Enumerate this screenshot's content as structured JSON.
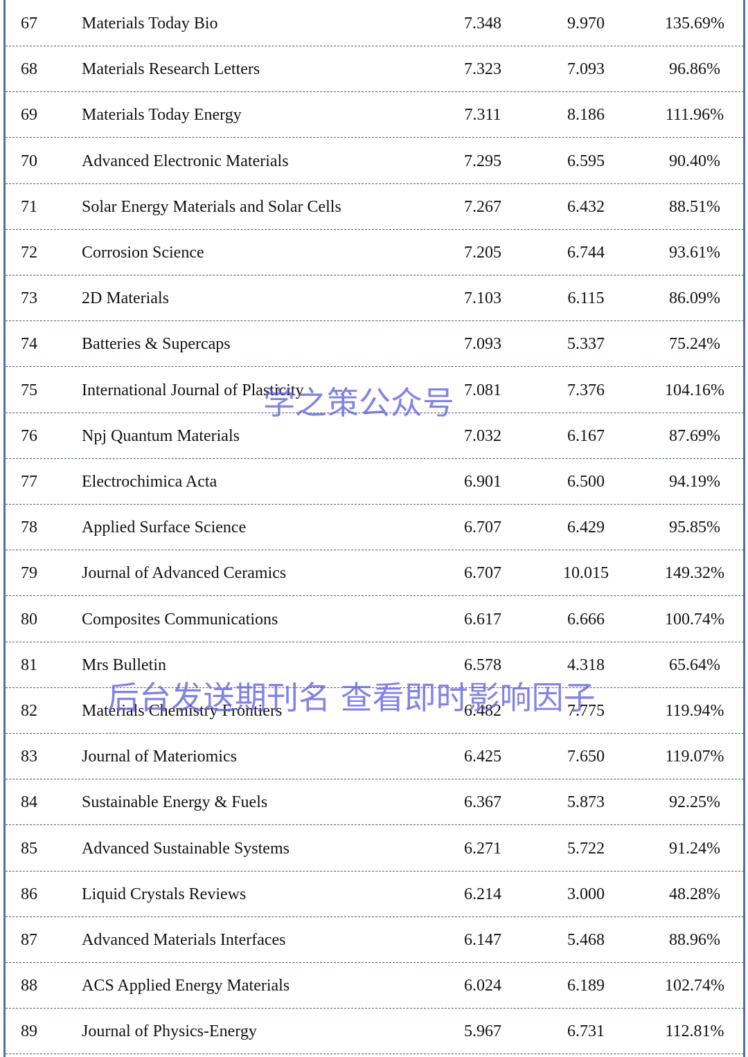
{
  "table": {
    "rows": [
      [
        "67",
        "Materials Today Bio",
        "7.348",
        "9.970",
        "135.69%"
      ],
      [
        "68",
        "Materials Research Letters",
        "7.323",
        "7.093",
        "96.86%"
      ],
      [
        "69",
        "Materials Today Energy",
        "7.311",
        "8.186",
        "111.96%"
      ],
      [
        "70",
        "Advanced Electronic Materials",
        "7.295",
        "6.595",
        "90.40%"
      ],
      [
        "71",
        "Solar Energy Materials and Solar Cells",
        "7.267",
        "6.432",
        "88.51%"
      ],
      [
        "72",
        "Corrosion Science",
        "7.205",
        "6.744",
        "93.61%"
      ],
      [
        "73",
        "2D Materials",
        "7.103",
        "6.115",
        "86.09%"
      ],
      [
        "74",
        "Batteries & Supercaps",
        "7.093",
        "5.337",
        "75.24%"
      ],
      [
        "75",
        "International Journal of Plasticity",
        "7.081",
        "7.376",
        "104.16%"
      ],
      [
        "76",
        "Npj Quantum Materials",
        "7.032",
        "6.167",
        "87.69%"
      ],
      [
        "77",
        "Electrochimica Acta",
        "6.901",
        "6.500",
        "94.19%"
      ],
      [
        "78",
        "Applied Surface Science",
        "6.707",
        "6.429",
        "95.85%"
      ],
      [
        "79",
        "Journal of Advanced Ceramics",
        "6.707",
        "10.015",
        "149.32%"
      ],
      [
        "80",
        "Composites Communications",
        "6.617",
        "6.666",
        "100.74%"
      ],
      [
        "81",
        "Mrs Bulletin",
        "6.578",
        "4.318",
        "65.64%"
      ],
      [
        "82",
        "Materials Chemistry Frontiers",
        "6.482",
        "7.775",
        "119.94%"
      ],
      [
        "83",
        "Journal of Materiomics",
        "6.425",
        "7.650",
        "119.07%"
      ],
      [
        "84",
        "Sustainable Energy & Fuels",
        "6.367",
        "5.873",
        "92.25%"
      ],
      [
        "85",
        "Advanced Sustainable Systems",
        "6.271",
        "5.722",
        "91.24%"
      ],
      [
        "86",
        "Liquid Crystals Reviews",
        "6.214",
        "3.000",
        "48.28%"
      ],
      [
        "87",
        "Advanced Materials Interfaces",
        "6.147",
        "5.468",
        "88.96%"
      ],
      [
        "88",
        "ACS Applied Energy Materials",
        "6.024",
        "6.189",
        "102.74%"
      ],
      [
        "89",
        "Journal of Physics-Energy",
        "5.967",
        "6.731",
        "112.81%"
      ]
    ]
  },
  "watermarks": [
    "学之策公众号",
    "后台发送期刊名 查看即时影响因子"
  ]
}
